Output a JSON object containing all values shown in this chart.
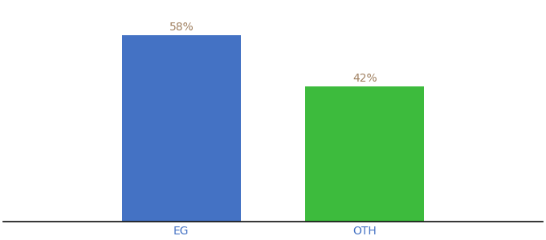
{
  "categories": [
    "EG",
    "OTH"
  ],
  "values": [
    58,
    42
  ],
  "bar_colors": [
    "#4472c4",
    "#3dbb3d"
  ],
  "label_texts": [
    "58%",
    "42%"
  ],
  "label_color": "#a08060",
  "ylim": [
    0,
    68
  ],
  "bar_width": 0.22,
  "x_positions": [
    0.33,
    0.67
  ],
  "xlim": [
    0.0,
    1.0
  ],
  "background_color": "#ffffff",
  "spine_color": "#111111",
  "tick_label_color": "#4472c4",
  "label_fontsize": 10,
  "tick_fontsize": 10
}
